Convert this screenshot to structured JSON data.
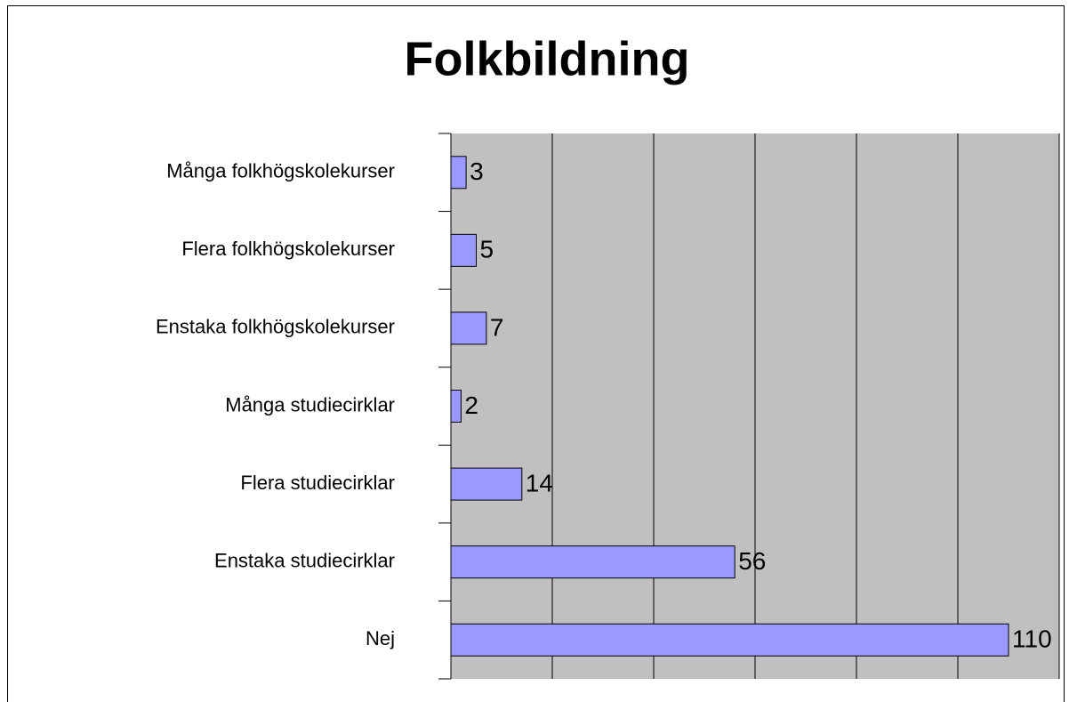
{
  "chart_data": {
    "type": "bar",
    "orientation": "horizontal",
    "title": "Folkbildning",
    "categories": [
      "Många folkhögskolekurser",
      "Flera folkhögskolekurser",
      "Enstaka folkhögskolekurser",
      "Många studiecirklar",
      "Flera studiecirklar",
      "Enstaka studiecirklar",
      "Nej"
    ],
    "values": [
      3,
      5,
      7,
      2,
      14,
      56,
      110
    ],
    "color": "#9999ff",
    "xlim": [
      0,
      120
    ],
    "xticks": [
      0,
      20,
      40,
      60,
      80,
      100,
      120
    ],
    "grid": true
  }
}
